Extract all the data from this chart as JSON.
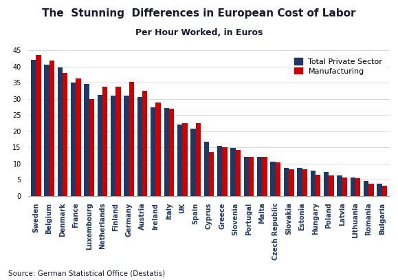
{
  "title": "The  Stunning  Differences in European Cost of Labor",
  "subtitle": "Per Hour Worked, in Euros",
  "source": "Source: German Statistical Office (Destatis)",
  "categories": [
    "Sweden",
    "Belgium",
    "Denmark",
    "France",
    "Luxembourg",
    "Netherlands",
    "Finland",
    "Germany",
    "Austria",
    "Ireland",
    "Italy",
    "UK",
    "Spain",
    "Cyprus",
    "Greece",
    "Slovenia",
    "Portugal",
    "Malta",
    "Czech Republic",
    "Slovakia",
    "Estonia",
    "Hungary",
    "Poland",
    "Latvia",
    "Lithuania",
    "Romania",
    "Bulgaria"
  ],
  "total_private": [
    42.0,
    40.5,
    39.7,
    35.0,
    34.7,
    31.2,
    31.1,
    31.1,
    30.5,
    27.4,
    27.3,
    22.0,
    20.9,
    16.7,
    15.5,
    14.8,
    12.2,
    12.1,
    10.7,
    8.7,
    8.6,
    7.9,
    7.5,
    6.3,
    5.8,
    4.7,
    3.7
  ],
  "manufacturing": [
    43.5,
    41.9,
    38.0,
    36.4,
    30.0,
    33.7,
    33.8,
    35.3,
    32.5,
    29.0,
    27.0,
    22.5,
    22.5,
    13.5,
    15.0,
    14.2,
    12.2,
    12.2,
    10.5,
    8.3,
    8.2,
    6.6,
    6.3,
    5.8,
    5.6,
    3.9,
    3.1
  ],
  "bar_color_private": "#1f3864",
  "bar_color_manufacturing": "#cc0000",
  "ylim": [
    0,
    45
  ],
  "yticks": [
    0,
    5,
    10,
    15,
    20,
    25,
    30,
    35,
    40,
    45
  ],
  "title_fontsize": 11,
  "subtitle_fontsize": 9,
  "legend_fontsize": 8,
  "tick_fontsize": 7,
  "source_fontsize": 7.5
}
